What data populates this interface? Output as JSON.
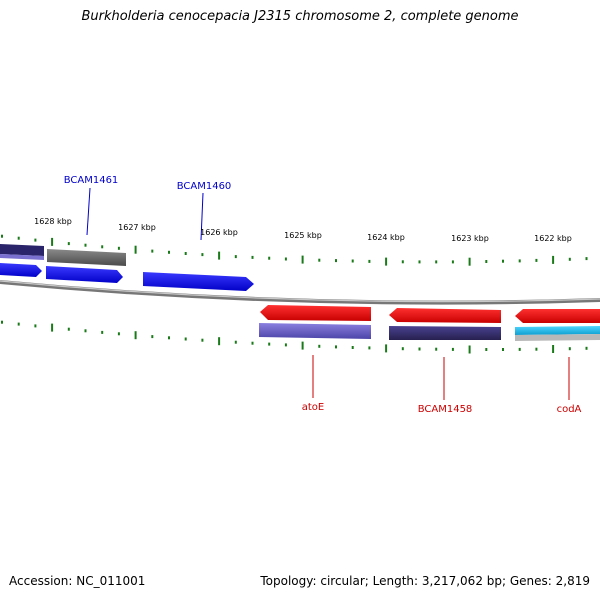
{
  "title": "Burkholderia cenocepacia J2315 chromosome 2, complete genome",
  "footer": {
    "accession": "Accession: NC_011001",
    "summary": "Topology: circular; Length: 3,217,062 bp; Genes: 2,819"
  },
  "colors": {
    "forward_gene": "#1010ee",
    "reverse_gene": "#ee1010",
    "gray_feature": "#666666",
    "purple_feature": "#6a5fc8",
    "dark_purple_feature": "#3a3370",
    "cyan_feature": "#1fb8e8",
    "tick": "#1a7a1a",
    "backbone": "#888888",
    "label_forward": "#0000cc",
    "label_reverse": "#cc0000"
  },
  "scale_labels": [
    "1628 kbp",
    "1627 kbp",
    "1626 kbp",
    "1625 kbp",
    "1624 kbp",
    "1623 kbp",
    "1622 kbp"
  ],
  "gene_labels": {
    "forward": [
      "BCAM1461",
      "BCAM1460"
    ],
    "reverse": [
      "atoE",
      "BCAM1458",
      "codA"
    ]
  },
  "features": [
    {
      "name": "BCAM1461",
      "strand": "forward",
      "type": "cds"
    },
    {
      "name": "BCAM1460",
      "strand": "forward",
      "type": "cds"
    },
    {
      "name": "atoE",
      "strand": "reverse",
      "type": "cds"
    },
    {
      "name": "BCAM1458",
      "strand": "reverse",
      "type": "cds"
    },
    {
      "name": "codA",
      "strand": "reverse",
      "type": "cds"
    }
  ]
}
